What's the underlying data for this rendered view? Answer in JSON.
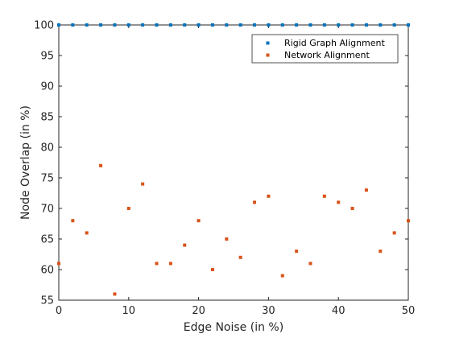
{
  "chart_data": {
    "type": "scatter",
    "xlabel": "Edge Noise (in %)",
    "ylabel": "Node Overlap (in %)",
    "xlim": [
      0,
      50
    ],
    "ylim": [
      55,
      100
    ],
    "xticks": [
      "0",
      "10",
      "20",
      "30",
      "40",
      "50"
    ],
    "yticks": [
      "55",
      "60",
      "65",
      "70",
      "75",
      "80",
      "85",
      "90",
      "95",
      "100"
    ],
    "grid": false,
    "legend_position": "top-right",
    "series": [
      {
        "name": "Rigid Graph Alignment",
        "color": "#0072BD",
        "x": [
          0,
          2,
          4,
          6,
          8,
          10,
          12,
          14,
          16,
          18,
          20,
          22,
          24,
          26,
          28,
          30,
          32,
          34,
          36,
          38,
          40,
          42,
          44,
          46,
          48,
          50
        ],
        "y": [
          100,
          100,
          100,
          100,
          100,
          100,
          100,
          100,
          100,
          100,
          100,
          100,
          100,
          100,
          100,
          100,
          100,
          100,
          100,
          100,
          100,
          100,
          100,
          100,
          100,
          100
        ]
      },
      {
        "name": "Network Alignment",
        "color": "#D95319",
        "x": [
          0,
          2,
          4,
          6,
          8,
          10,
          12,
          14,
          16,
          18,
          20,
          22,
          24,
          26,
          28,
          30,
          32,
          34,
          36,
          38,
          40,
          42,
          44,
          46,
          48,
          50
        ],
        "y": [
          61,
          68,
          66,
          77,
          56,
          70,
          74,
          61,
          61,
          64,
          68,
          60,
          65,
          62,
          71,
          72,
          59,
          63,
          61,
          72,
          71,
          70,
          73,
          63,
          66,
          68
        ]
      }
    ]
  }
}
